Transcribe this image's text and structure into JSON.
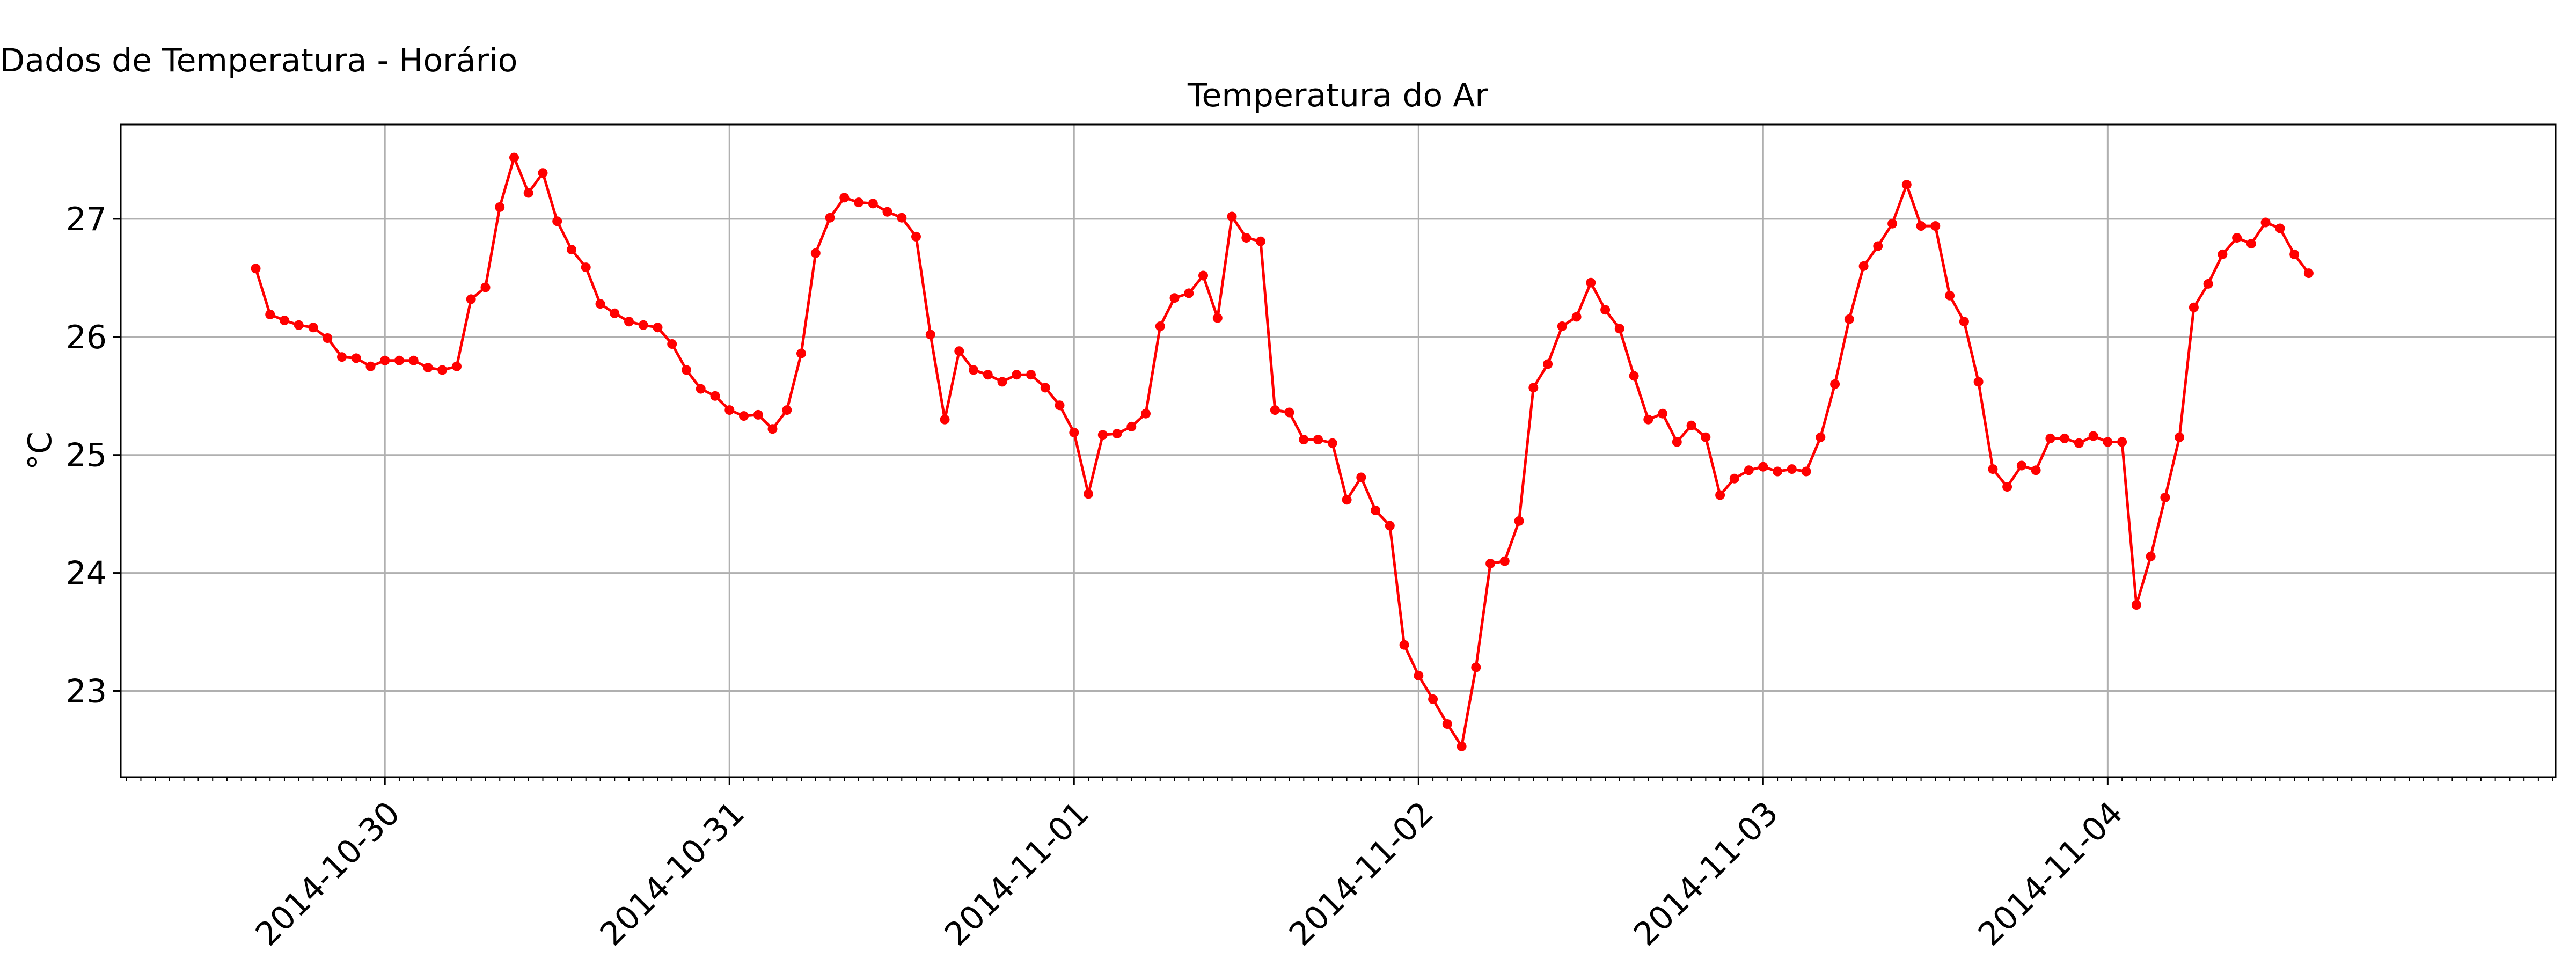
{
  "figure_title": "Dados de Temperatura - Horário",
  "chart_data": {
    "type": "line",
    "title": "Temperatura do Ar",
    "xlabel": "",
    "ylabel": "°C",
    "x_tick_labels": [
      "2014-10-30",
      "2014-10-31",
      "2014-11-01",
      "2014-11-02",
      "2014-11-03",
      "2014-11-04"
    ],
    "y_ticks": [
      23,
      24,
      25,
      26,
      27
    ],
    "xlim": [
      "2014-10-29T05:36",
      "2014-11-05T07:12"
    ],
    "ylim": [
      22.27,
      27.8
    ],
    "grid": true,
    "minor_x_ticks": "hourly",
    "series": [
      {
        "color": "#ff0000",
        "marker": "circle",
        "start": "2014-10-29T15:00",
        "interval": "hourly",
        "values": [
          26.58,
          26.19,
          26.14,
          26.1,
          26.08,
          25.99,
          25.83,
          25.82,
          25.75,
          25.8,
          25.8,
          25.8,
          25.74,
          25.72,
          25.75,
          26.32,
          26.42,
          27.1,
          27.52,
          27.22,
          27.39,
          26.98,
          26.74,
          26.59,
          26.28,
          26.2,
          26.13,
          26.1,
          26.08,
          25.94,
          25.72,
          25.56,
          25.5,
          25.38,
          25.33,
          25.34,
          25.22,
          25.38,
          25.86,
          26.71,
          27.01,
          27.18,
          27.14,
          27.13,
          27.06,
          27.01,
          26.85,
          26.02,
          25.3,
          25.88,
          25.72,
          25.68,
          25.62,
          25.68,
          25.68,
          25.57,
          25.42,
          25.19,
          24.67,
          25.17,
          25.18,
          25.24,
          25.35,
          26.09,
          26.33,
          26.37,
          26.52,
          26.16,
          27.02,
          26.84,
          26.81,
          25.38,
          25.36,
          25.13,
          25.13,
          25.1,
          24.62,
          24.81,
          24.53,
          24.4,
          23.39,
          23.13,
          22.93,
          22.72,
          22.53,
          23.2,
          24.08,
          24.1,
          24.44,
          25.57,
          25.77,
          26.09,
          26.17,
          26.46,
          26.23,
          26.07,
          25.67,
          25.3,
          25.35,
          25.11,
          25.25,
          25.15,
          24.66,
          24.8,
          24.87,
          24.9,
          24.86,
          24.88,
          24.86,
          25.15,
          25.6,
          26.15,
          26.6,
          26.77,
          26.96,
          27.29,
          26.94,
          26.94,
          26.35,
          26.13,
          25.62,
          24.88,
          24.73,
          24.91,
          24.87,
          25.14,
          25.14,
          25.1,
          25.16,
          25.11,
          25.11,
          23.73,
          24.14,
          24.64,
          25.15,
          26.25,
          26.45,
          26.7,
          26.84,
          26.79,
          26.97,
          26.92,
          26.7,
          26.54
        ]
      }
    ]
  }
}
